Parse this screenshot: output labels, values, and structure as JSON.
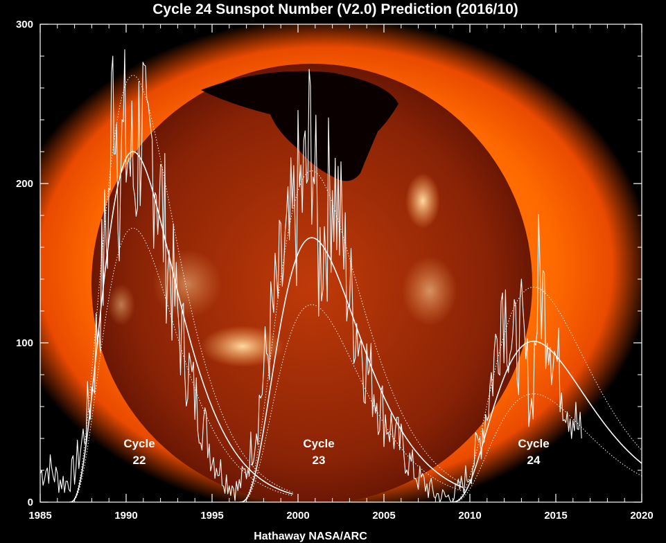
{
  "chart_data": {
    "type": "line",
    "title": "Cycle 24 Sunspot Number (V2.0) Prediction (2016/10)",
    "credit": "Hathaway  NASA/ARC",
    "xlabel": "",
    "ylabel": "",
    "xlim": [
      1985,
      2020
    ],
    "ylim": [
      0,
      300
    ],
    "xticks": [
      "1985",
      "1990",
      "1995",
      "2000",
      "2005",
      "2010",
      "2015",
      "2020"
    ],
    "yticks": [
      "0",
      "100",
      "200",
      "300"
    ],
    "grid": false,
    "background": "X-ray image of the Sun",
    "colors": {
      "line": "#ffffff",
      "background": "#000000",
      "sun_outer": "#ff6a00",
      "sun_disk": "#7a1804"
    },
    "cycles": [
      {
        "label": "Cycle",
        "number": "22",
        "start": 1986.7,
        "peak_year": 1990.4,
        "peak": 220,
        "upper_peak": 268,
        "lower_peak": 172
      },
      {
        "label": "Cycle",
        "number": "23",
        "start": 1996.6,
        "peak_year": 2000.8,
        "peak": 166,
        "upper_peak": 208,
        "lower_peak": 124
      },
      {
        "label": "Cycle",
        "number": "24",
        "start": 2008.9,
        "peak_year": 2013.7,
        "peak": 101,
        "upper_peak": 135,
        "lower_peak": 68
      }
    ],
    "monthly": {
      "name": "",
      "points": [
        [
          1985.0,
          18
        ],
        [
          1985.5,
          22
        ],
        [
          1986.0,
          15
        ],
        [
          1986.5,
          12
        ],
        [
          1987.0,
          20
        ],
        [
          1987.5,
          40
        ],
        [
          1988.0,
          70
        ],
        [
          1988.5,
          130
        ],
        [
          1989.0,
          185
        ],
        [
          1989.3,
          280
        ],
        [
          1989.6,
          210
        ],
        [
          1990.0,
          225
        ],
        [
          1990.5,
          200
        ],
        [
          1990.9,
          250
        ],
        [
          1991.2,
          200
        ],
        [
          1991.6,
          225
        ],
        [
          1992.0,
          190
        ],
        [
          1992.5,
          150
        ],
        [
          1993.0,
          115
        ],
        [
          1993.5,
          90
        ],
        [
          1994.0,
          65
        ],
        [
          1994.5,
          50
        ],
        [
          1995.0,
          30
        ],
        [
          1995.5,
          20
        ],
        [
          1996.0,
          12
        ],
        [
          1996.5,
          8
        ],
        [
          1997.0,
          20
        ],
        [
          1997.5,
          45
        ],
        [
          1998.0,
          80
        ],
        [
          1998.5,
          115
        ],
        [
          1999.0,
          140
        ],
        [
          1999.5,
          160
        ],
        [
          2000.0,
          190
        ],
        [
          2000.5,
          200
        ],
        [
          2000.8,
          240
        ],
        [
          2001.2,
          150
        ],
        [
          2001.7,
          180
        ],
        [
          2002.0,
          210
        ],
        [
          2002.5,
          170
        ],
        [
          2003.0,
          130
        ],
        [
          2003.5,
          110
        ],
        [
          2004.0,
          85
        ],
        [
          2004.5,
          70
        ],
        [
          2005.0,
          55
        ],
        [
          2005.5,
          45
        ],
        [
          2006.0,
          35
        ],
        [
          2006.5,
          25
        ],
        [
          2007.0,
          15
        ],
        [
          2007.5,
          10
        ],
        [
          2008.0,
          5
        ],
        [
          2008.5,
          3
        ],
        [
          2009.0,
          3
        ],
        [
          2009.5,
          10
        ],
        [
          2010.0,
          20
        ],
        [
          2010.5,
          35
        ],
        [
          2011.0,
          60
        ],
        [
          2011.5,
          95
        ],
        [
          2011.9,
          135
        ],
        [
          2012.5,
          95
        ],
        [
          2013.0,
          105
        ],
        [
          2013.6,
          60
        ],
        [
          2014.0,
          140
        ],
        [
          2014.5,
          120
        ],
        [
          2015.0,
          90
        ],
        [
          2015.5,
          70
        ],
        [
          2016.0,
          55
        ],
        [
          2016.5,
          40
        ]
      ]
    }
  }
}
